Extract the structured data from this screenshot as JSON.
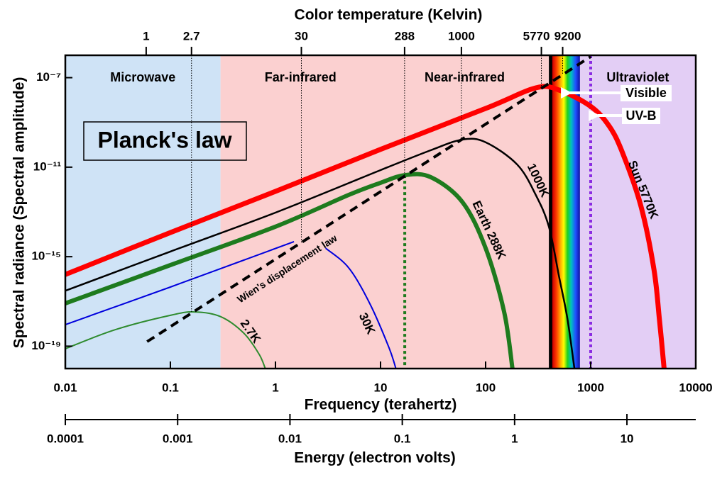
{
  "chart_data": {
    "type": "line",
    "title": "Planck's law",
    "x_label": "Frequency (terahertz)",
    "y_label": "Spectral radiance (Spectral amplitude)",
    "xscale": "log",
    "yscale": "log",
    "xlim": [
      0.01,
      10000
    ],
    "xticks": [
      0.01,
      0.1,
      1,
      10,
      100,
      1000,
      10000
    ],
    "ylim": [
      1e-20,
      1e-06
    ],
    "yticks": [
      {
        "value": 1e-07,
        "label": "10⁻⁷"
      },
      {
        "value": 1e-11,
        "label": "10⁻¹¹"
      },
      {
        "value": 1e-15,
        "label": "10⁻¹⁵"
      },
      {
        "value": 1e-19,
        "label": "10⁻¹⁹"
      }
    ],
    "top_axis": {
      "label": "Color temperature (Kelvin)",
      "lim": [
        0.17,
        170000
      ],
      "ticks": [
        1,
        2.7,
        30,
        288,
        1000,
        5770,
        9200
      ]
    },
    "energy_axis": {
      "label": "Energy (electron volts)",
      "lim": [
        0.0001,
        41
      ],
      "ticks": [
        0.0001,
        0.001,
        0.01,
        0.1,
        1,
        10
      ]
    },
    "regions": [
      {
        "name": "Microwave",
        "from": 0.01,
        "to": 0.3,
        "color": "#cfe3f6"
      },
      {
        "name": "Far-infrared",
        "from": 0.3,
        "to": 10,
        "color": "#fbd0d0"
      },
      {
        "name": "Near-infrared",
        "from": 10,
        "to": 400,
        "color": "#fbd0d0"
      },
      {
        "name": "Ultraviolet",
        "from": 790,
        "to": 10000,
        "color": "#e3cef5"
      }
    ],
    "visible": {
      "name": "Visible",
      "from": 400,
      "to": 790
    },
    "uvb": {
      "name": "UV-B",
      "frequency": 1000,
      "color": "#8a2be2"
    },
    "series": [
      {
        "name": "Sun 5770K",
        "color": "#ff0000",
        "width": 7,
        "x": [
          0.01,
          0.1,
          1,
          10,
          100,
          300,
          500,
          1000,
          1500,
          2000,
          3000,
          4000,
          4500,
          5000
        ],
        "values": [
          1.6e-16,
          1.2e-14,
          8.3e-13,
          6.2e-11,
          4.2e-09,
          3.5e-08,
          2.8e-08,
          5.2e-09,
          6.8e-10,
          4.6e-11,
          1.9e-13,
          2.7e-16,
          1.7e-18,
          1e-20
        ]
      },
      {
        "name": "1000K",
        "color": "#000000",
        "width": 2.5,
        "x": [
          0.01,
          0.1,
          1,
          10,
          30,
          60,
          100,
          200,
          300,
          400,
          500,
          600,
          700
        ],
        "values": [
          3e-17,
          1.7e-15,
          9.3e-14,
          7.4e-12,
          5.7e-11,
          1.7e-10,
          1.3e-10,
          1.3e-11,
          5.8e-13,
          2.2e-14,
          1.3e-16,
          1.7e-18,
          1e-20
        ]
      },
      {
        "name": "Earth 288K",
        "color": "#1e7b1e",
        "width": 6,
        "drop_line": true,
        "x": [
          0.01,
          0.1,
          1,
          5,
          10,
          17,
          30,
          60,
          100,
          150,
          180
        ],
        "values": [
          8.2e-18,
          4.2e-16,
          2.2e-14,
          5.8e-13,
          2e-12,
          4.4e-12,
          3.6e-12,
          2.8e-13,
          2.4e-15,
          3.4e-18,
          1e-20
        ]
      },
      {
        "name": "30K",
        "color": "#0000dd",
        "width": 2,
        "x": [
          0.01,
          0.1,
          0.5,
          1.5,
          2,
          3,
          5,
          8,
          12,
          14
        ],
        "values": [
          9.2e-19,
          4.4e-17,
          7e-16,
          4.7e-15,
          null,
          2.4e-15,
          3.1e-16,
          7.1e-18,
          8.9e-20,
          1e-20
        ]
      },
      {
        "name": "2.7K",
        "color": "#2e8b2e",
        "width": 2,
        "x": [
          0.01,
          0.03,
          0.1,
          0.17,
          0.3,
          0.5,
          0.7,
          0.8
        ],
        "values": [
          7.7e-20,
          5.5e-19,
          2.4e-18,
          3.4e-18,
          2.1e-18,
          3.8e-19,
          4.3e-20,
          1e-20
        ]
      },
      {
        "name": "Wien's displacement law",
        "color": "#000000",
        "width": 4,
        "dash": true,
        "x": [
          0.06,
          1000
        ],
        "values": [
          1.6e-19,
          8.7e-07
        ]
      }
    ]
  }
}
